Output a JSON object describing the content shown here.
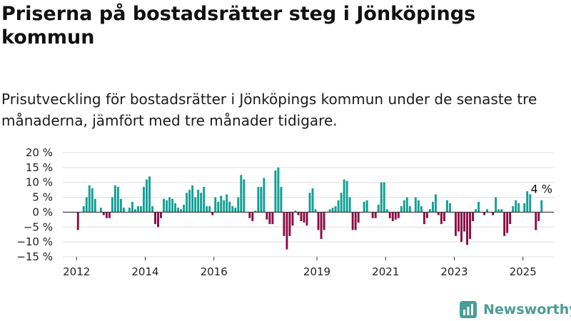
{
  "header": {
    "title": "Priserna på bostadsrätter steg i Jönköpings kommun",
    "subtitle": "Prisutveckling för bostadsrätter i Jönköpings kommun under de senaste tre månaderna, jämfört med tre månader tidigare."
  },
  "brand": {
    "name": "Newsworthy"
  },
  "colors": {
    "positive": "#0f9f94",
    "negative": "#8b0a43",
    "axis": "#333333",
    "grid": "#dddddd"
  },
  "chart_data": {
    "type": "bar",
    "ylim": [
      -15,
      20
    ],
    "y_ticks": [
      20,
      15,
      10,
      5,
      0,
      -5,
      -10,
      -15
    ],
    "y_tick_labels": [
      "20 %",
      "15 %",
      "10 %",
      "5 %",
      "0 %",
      "−5 %",
      "−10 %",
      "−15 %"
    ],
    "x_ticks": [
      2012,
      2014,
      2016,
      2019,
      2021,
      2023,
      2025
    ],
    "x_tick_labels": [
      "2012",
      "2014",
      "2016",
      "2019",
      "2021",
      "2023",
      "2025"
    ],
    "start": [
      2012,
      1
    ],
    "values": [
      -6,
      0,
      2,
      5,
      9,
      8,
      4.5,
      0,
      1.5,
      -1,
      -2,
      -2,
      5,
      9,
      8.5,
      4.5,
      1.5,
      0,
      1.5,
      3.5,
      1,
      2,
      2,
      8.5,
      11,
      12,
      2,
      -4,
      -5,
      -2,
      4.5,
      4,
      5,
      4.5,
      3,
      1.5,
      1,
      2.5,
      6.5,
      7.5,
      9,
      5,
      7.5,
      6.5,
      8.5,
      2,
      2,
      -1,
      5,
      3.5,
      5.5,
      4,
      6,
      3.5,
      2,
      1.5,
      5,
      12.5,
      11,
      0,
      -2,
      -3,
      0.5,
      8.5,
      8.5,
      11.5,
      -2.5,
      -4,
      -4,
      14,
      15,
      8.5,
      -8,
      -12.5,
      -8,
      -4.5,
      0.5,
      -1,
      -3,
      -3.5,
      -4.5,
      6.5,
      8,
      1,
      -6,
      -9,
      -6,
      0,
      1,
      1.5,
      2,
      4,
      6.5,
      11,
      10.5,
      5,
      -6,
      -6,
      -3.5,
      0,
      3.5,
      4,
      0,
      -2,
      -2,
      2.5,
      10,
      10,
      1,
      -2,
      -3,
      -2.5,
      -2,
      2,
      4,
      5,
      2,
      0,
      5,
      4,
      2,
      -4,
      -2,
      1,
      3.5,
      6,
      -1,
      -4,
      -3,
      4,
      3,
      0,
      -8,
      -6.5,
      -10,
      -6.5,
      -11,
      -9,
      -3,
      1,
      3.5,
      0,
      -1,
      1,
      0,
      -1,
      5,
      1,
      1,
      -8,
      -7,
      -4,
      2,
      4,
      3,
      0,
      3,
      7,
      6,
      0,
      -6,
      -3,
      4
    ],
    "annotation": {
      "label": "4 %",
      "value": 4
    }
  }
}
